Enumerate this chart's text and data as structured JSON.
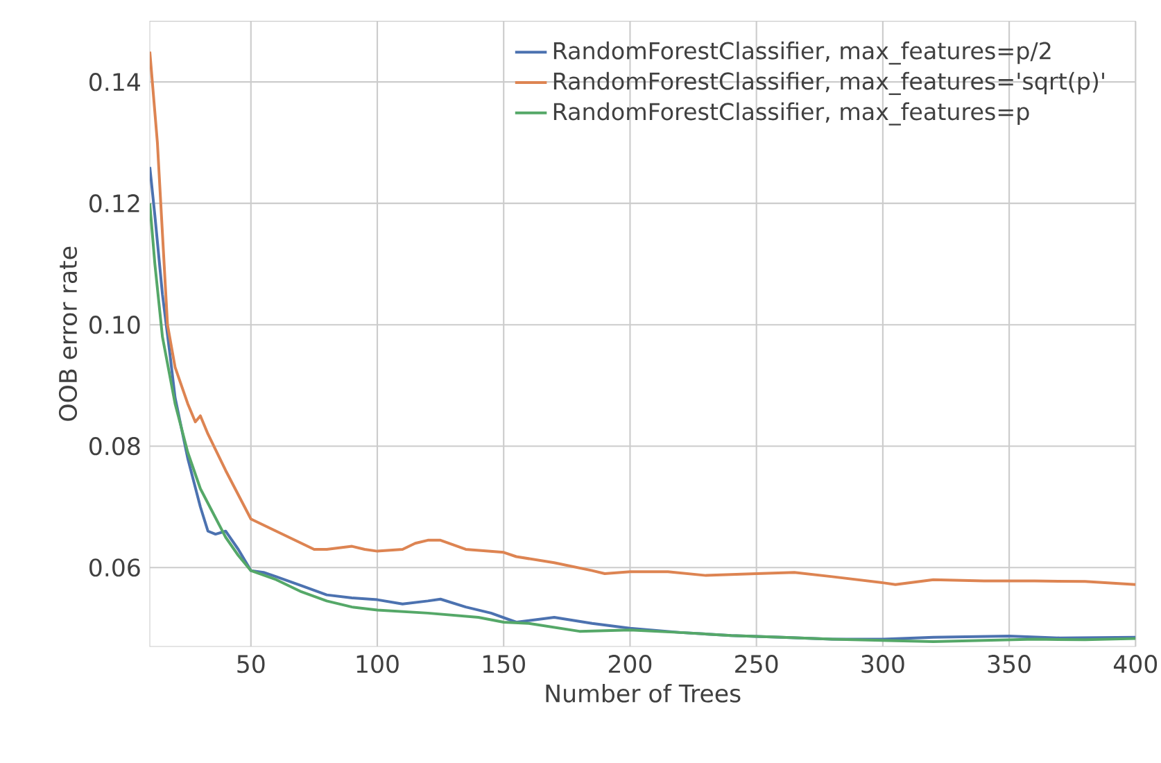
{
  "chart_data": {
    "type": "line",
    "xlabel": "Number of Trees",
    "ylabel": "OOB error rate",
    "x": [
      10,
      13,
      17,
      20,
      25,
      28,
      30,
      33,
      40,
      45,
      50,
      55,
      60,
      65,
      70,
      75,
      80,
      90,
      95,
      100,
      110,
      115,
      120,
      125,
      135,
      150,
      155,
      170,
      185,
      190,
      200,
      215,
      230,
      250,
      265,
      280,
      300,
      305,
      320,
      340,
      360,
      380,
      400
    ],
    "series": [
      {
        "name": "RandomForestClassifier, max_features=p/2",
        "color": "#4c72b0",
        "x": [
          10,
          12,
          15,
          18,
          20,
          25,
          30,
          33,
          36,
          40,
          45,
          50,
          55,
          60,
          70,
          80,
          90,
          100,
          110,
          120,
          125,
          135,
          145,
          155,
          170,
          185,
          200,
          220,
          240,
          260,
          280,
          300,
          320,
          350,
          370,
          400
        ],
        "values": [
          0.126,
          0.118,
          0.105,
          0.095,
          0.088,
          0.078,
          0.07,
          0.066,
          0.0655,
          0.066,
          0.063,
          0.0595,
          0.0592,
          0.0585,
          0.057,
          0.0555,
          0.055,
          0.0547,
          0.054,
          0.0545,
          0.0548,
          0.0535,
          0.0525,
          0.051,
          0.0518,
          0.0508,
          0.05,
          0.0493,
          0.0488,
          0.0485,
          0.0482,
          0.0482,
          0.0485,
          0.0487,
          0.0484,
          0.0485
        ]
      },
      {
        "name": "RandomForestClassifier, max_features='sqrt(p)'",
        "color": "#dd8452",
        "values": [
          0.145,
          0.13,
          0.1,
          0.093,
          0.087,
          0.084,
          0.085,
          0.082,
          0.076,
          0.072,
          0.068,
          0.067,
          0.066,
          0.065,
          0.064,
          0.063,
          0.063,
          0.0635,
          0.063,
          0.0627,
          0.063,
          0.064,
          0.0645,
          0.0645,
          0.063,
          0.0625,
          0.0618,
          0.0608,
          0.0595,
          0.059,
          0.0593,
          0.0593,
          0.0587,
          0.059,
          0.0592,
          0.0585,
          0.0575,
          0.0572,
          0.058,
          0.0578,
          0.0578,
          0.0577,
          0.0572
        ]
      },
      {
        "name": "RandomForestClassifier, max_features=p",
        "color": "#55a868",
        "x": [
          10,
          12,
          15,
          20,
          25,
          30,
          35,
          40,
          45,
          50,
          60,
          70,
          80,
          90,
          100,
          120,
          140,
          150,
          160,
          180,
          200,
          220,
          240,
          260,
          280,
          300,
          320,
          340,
          360,
          380,
          400
        ],
        "values": [
          0.12,
          0.11,
          0.098,
          0.087,
          0.079,
          0.073,
          0.069,
          0.065,
          0.062,
          0.0595,
          0.058,
          0.056,
          0.0545,
          0.0535,
          0.053,
          0.0525,
          0.0518,
          0.051,
          0.0508,
          0.0495,
          0.0497,
          0.0493,
          0.0488,
          0.0485,
          0.0482,
          0.048,
          0.0478,
          0.048,
          0.0482,
          0.0481,
          0.0483
        ]
      }
    ],
    "xlim": [
      10,
      400
    ],
    "ylim": [
      0.047,
      0.15
    ],
    "xticks": [
      50,
      100,
      150,
      200,
      250,
      300,
      350,
      400
    ],
    "yticks": [
      {
        "value": 0.06,
        "label": "0.06"
      },
      {
        "value": 0.08,
        "label": "0.08"
      },
      {
        "value": 0.1,
        "label": "0.10"
      },
      {
        "value": 0.12,
        "label": "0.12"
      },
      {
        "value": 0.14,
        "label": "0.14"
      }
    ],
    "grid": true,
    "legend": "top right",
    "line_style": "solid",
    "marker": "none"
  }
}
